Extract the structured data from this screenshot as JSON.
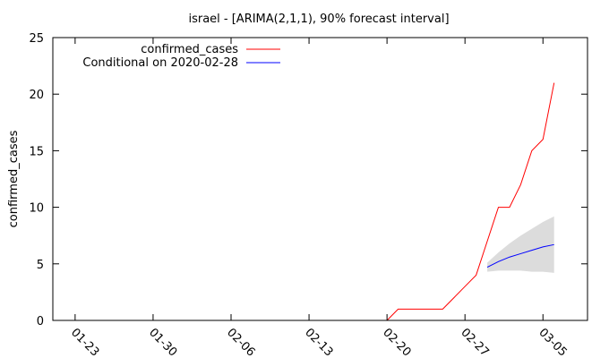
{
  "chart_data": {
    "type": "line",
    "title": "israel -  [ARIMA(2,1,1), 90% forecast interval]",
    "xlabel": "",
    "ylabel": "confirmed_cases",
    "x_ticks": [
      "01-23",
      "01-30",
      "02-06",
      "02-13",
      "02-20",
      "02-27",
      "03-05"
    ],
    "y_ticks": [
      0,
      5,
      10,
      15,
      20,
      25
    ],
    "xlim": [
      "2020-01-21",
      "2020-03-09"
    ],
    "ylim": [
      0,
      25
    ],
    "grid": false,
    "legend_position": "top-left",
    "series": [
      {
        "name": "confirmed_cases",
        "color": "#ff0000",
        "points": [
          [
            "2020-02-20",
            0
          ],
          [
            "2020-02-21",
            1
          ],
          [
            "2020-02-22",
            1
          ],
          [
            "2020-02-23",
            1
          ],
          [
            "2020-02-24",
            1
          ],
          [
            "2020-02-25",
            1
          ],
          [
            "2020-02-26",
            2
          ],
          [
            "2020-02-27",
            3
          ],
          [
            "2020-02-28",
            4
          ],
          [
            "2020-02-29",
            7
          ],
          [
            "2020-03-01",
            10
          ],
          [
            "2020-03-02",
            10
          ],
          [
            "2020-03-03",
            12
          ],
          [
            "2020-03-04",
            15
          ],
          [
            "2020-03-05",
            16
          ],
          [
            "2020-03-06",
            21
          ]
        ]
      },
      {
        "name": "Conditional on 2020-02-28",
        "color": "#0000ff",
        "points": [
          [
            "2020-02-29",
            4.7
          ],
          [
            "2020-03-01",
            5.2
          ],
          [
            "2020-03-02",
            5.6
          ],
          [
            "2020-03-03",
            5.9
          ],
          [
            "2020-03-04",
            6.2
          ],
          [
            "2020-03-05",
            6.5
          ],
          [
            "2020-03-06",
            6.7
          ]
        ],
        "interval": {
          "level": "90%",
          "color": "#dcdcdc",
          "lower": [
            4.3,
            4.4,
            4.4,
            4.4,
            4.3,
            4.3,
            4.2
          ],
          "upper": [
            5.1,
            6.0,
            6.8,
            7.5,
            8.1,
            8.7,
            9.2
          ]
        }
      }
    ]
  }
}
